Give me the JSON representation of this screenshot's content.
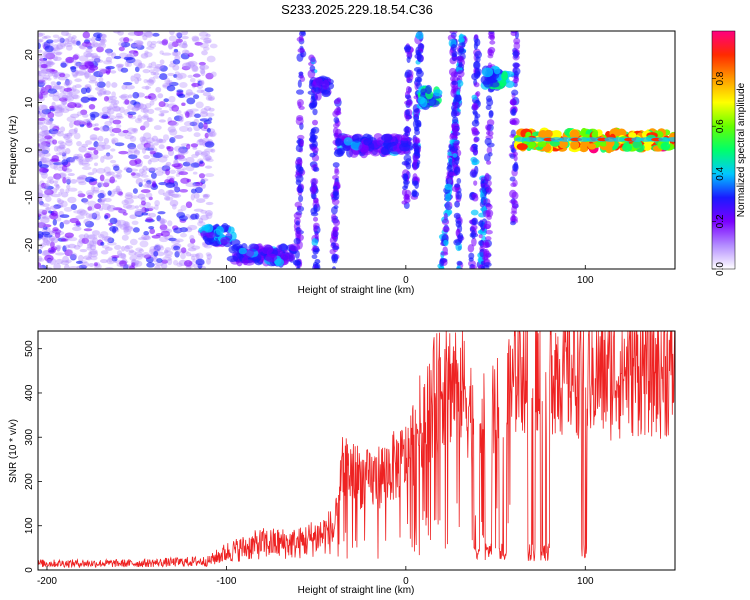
{
  "title": "S233.2025.229.18.54.C36",
  "chart_data": [
    {
      "type": "heatmap",
      "name": "spectrogram",
      "xlabel": "Height of straight line (km)",
      "ylabel": "Frequency (Hz)",
      "xlim": [
        -205,
        150
      ],
      "ylim": [
        -25,
        25
      ],
      "xticks": [
        -200,
        -100,
        0,
        100
      ],
      "yticks": [
        -20,
        -10,
        0,
        10,
        20
      ],
      "colorbar": {
        "label": "Normalized spectral amplitude",
        "range": [
          0,
          1
        ],
        "ticks": [
          "0.0",
          "0.2",
          "0.4",
          "0.6",
          "0.8"
        ],
        "tick_values": [
          0.0,
          0.2,
          0.4,
          0.6,
          0.8
        ],
        "colors": [
          "#ffffff",
          "#b38cff",
          "#7a00ff",
          "#1a1aff",
          "#00c8ff",
          "#00ff6a",
          "#66ff00",
          "#ffff00",
          "#ff9a00",
          "#ff2a00",
          "#ff0080"
        ]
      },
      "features": [
        {
          "name": "noise-field",
          "x_range": [
            -205,
            -110
          ],
          "f_range": [
            -25,
            25
          ],
          "amplitude": 0.15
        },
        {
          "name": "low-band-a",
          "x_range": [
            -113,
            -95
          ],
          "f_center": -18,
          "amplitude": 0.35
        },
        {
          "name": "low-band-b",
          "x_range": [
            -97,
            -62
          ],
          "f_center": -22,
          "amplitude": 0.3
        },
        {
          "name": "band-40",
          "x_range": [
            -50,
            -42
          ],
          "f_center": 13,
          "amplitude": 0.3
        },
        {
          "name": "line-0",
          "x_range": [
            -38,
            2
          ],
          "f_center": 1,
          "amplitude": 0.3
        },
        {
          "name": "peak-15",
          "x_range": [
            8,
            18
          ],
          "f_center": 11,
          "amplitude": 0.45
        },
        {
          "name": "peak-48",
          "x_range": [
            44,
            58
          ],
          "f_center": 15,
          "amplitude": 0.45
        },
        {
          "name": "steady-line",
          "x_range": [
            62,
            150
          ],
          "f_center": 2,
          "amplitude": 0.8
        }
      ]
    },
    {
      "type": "line",
      "name": "snr",
      "xlabel": "Height of straight line (km)",
      "ylabel": "SNR (10 * v/v)",
      "xlim": [
        -205,
        150
      ],
      "ylim": [
        0,
        540
      ],
      "xticks": [
        -200,
        -100,
        0,
        100
      ],
      "yticks": [
        0,
        100,
        200,
        300,
        400,
        500
      ],
      "color": "#ee2222",
      "series": [
        {
          "name": "snr",
          "x": [
            -205,
            -150,
            -110,
            -100,
            -80,
            -60,
            -40,
            -35,
            -20,
            0,
            10,
            20,
            30,
            40,
            50,
            60,
            62,
            70,
            80,
            90,
            100,
            110,
            120,
            130,
            150
          ],
          "y": [
            15,
            15,
            20,
            40,
            60,
            60,
            90,
            230,
            200,
            250,
            350,
            420,
            430,
            320,
            350,
            400,
            480,
            460,
            470,
            450,
            460,
            440,
            450,
            460,
            450
          ]
        }
      ]
    }
  ]
}
